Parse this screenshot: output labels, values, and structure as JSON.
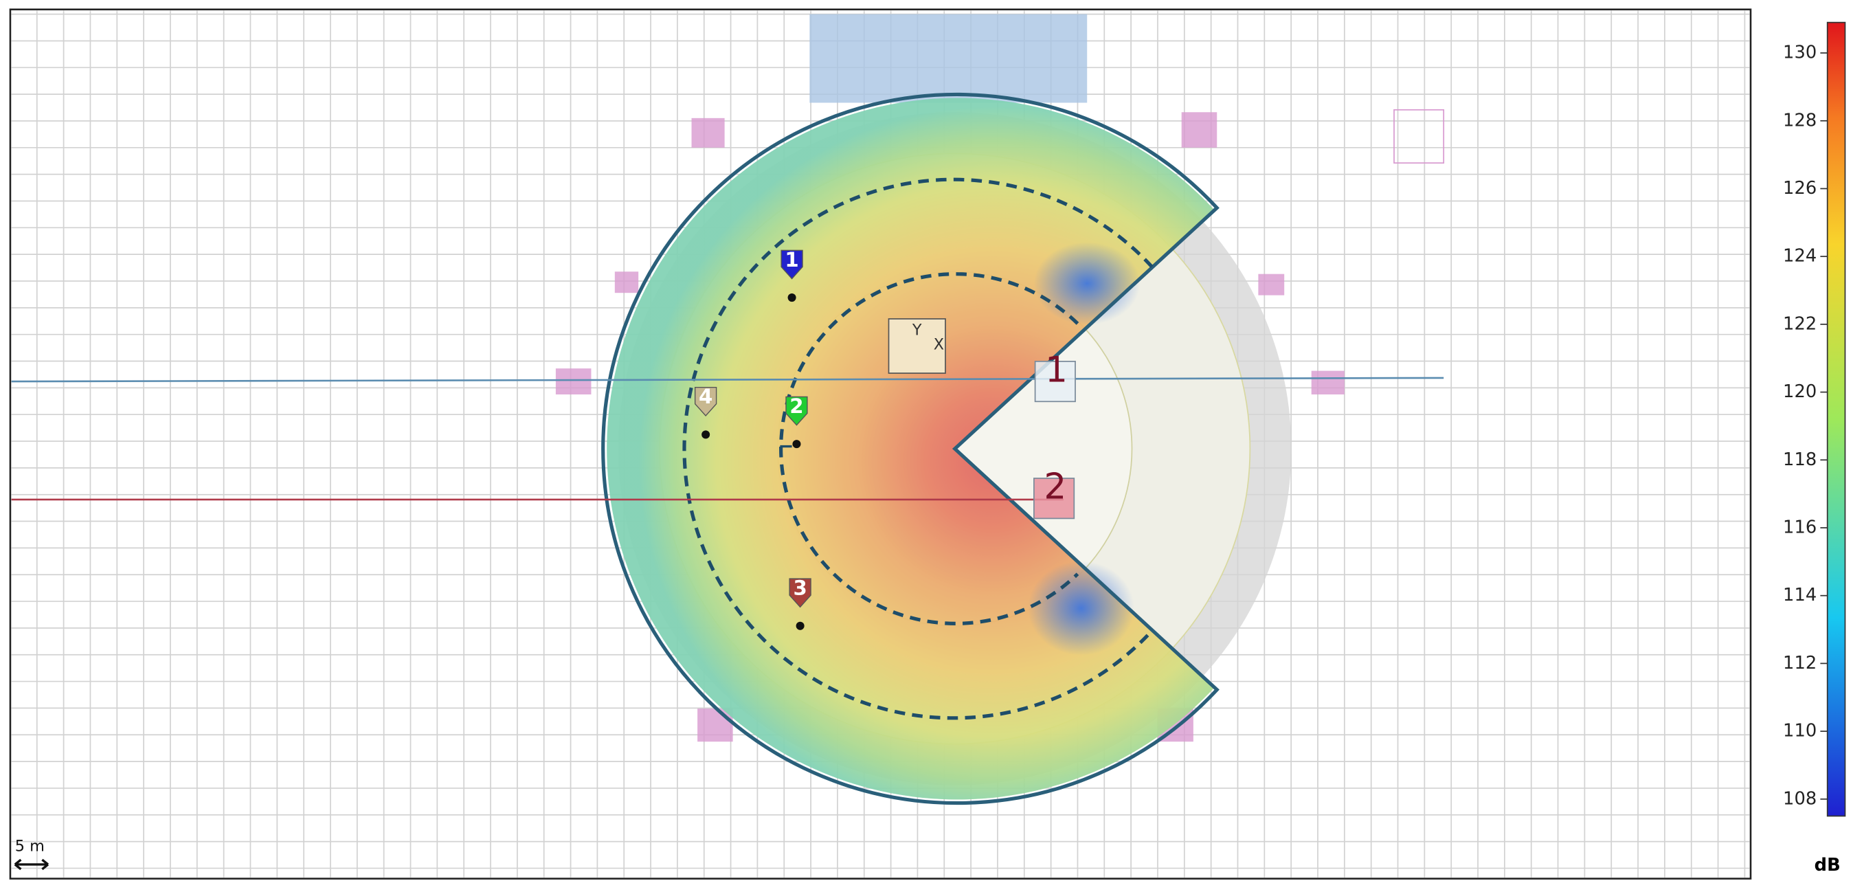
{
  "map": {
    "receivers": [
      {
        "label": "1"
      },
      {
        "label": "2"
      },
      {
        "label": "3"
      },
      {
        "label": "4"
      }
    ],
    "sources": [
      {
        "label": "1"
      },
      {
        "label": "2"
      }
    ],
    "axes": {
      "y": "Y",
      "x": "X"
    },
    "scale_label": "5 m"
  },
  "colorbar": {
    "range": [
      107.5,
      130.9
    ],
    "ticks": [
      108,
      110,
      112,
      114,
      116,
      118,
      120,
      122,
      124,
      126,
      128,
      130
    ],
    "unit": "dB"
  }
}
